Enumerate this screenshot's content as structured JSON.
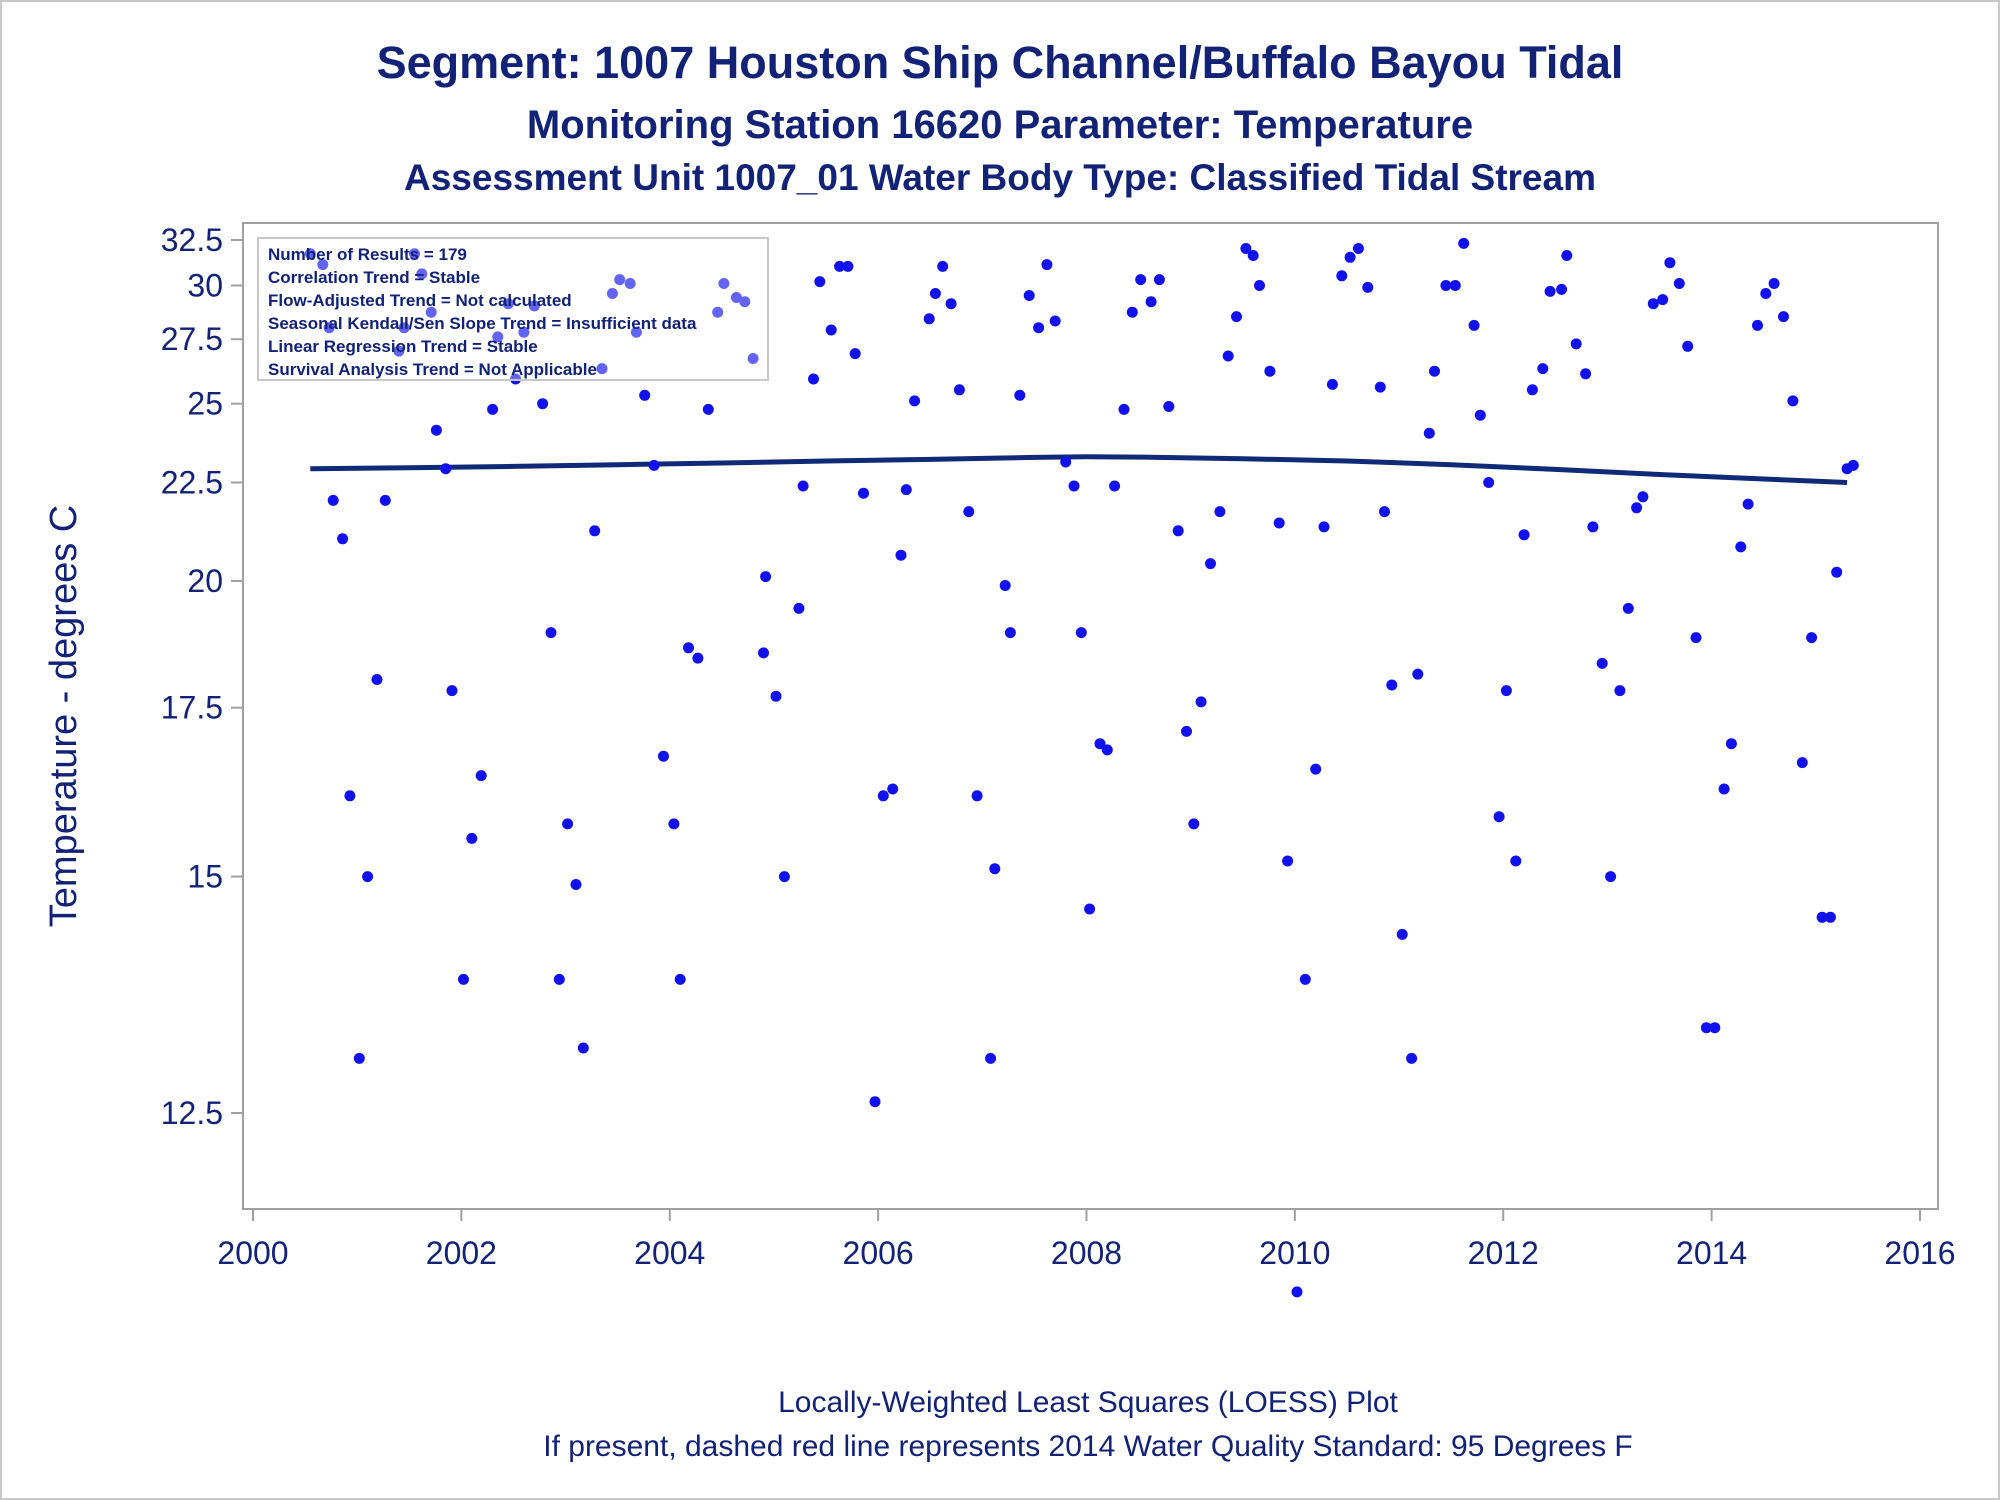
{
  "titles": {
    "line1": "Segment: 1007  Houston Ship Channel/Buffalo Bayou Tidal",
    "line2": "Monitoring Station 16620 Parameter: Temperature",
    "line3": "Assessment Unit 1007_01   Water Body Type: Classified Tidal Stream"
  },
  "stats_box": [
    "Number of Results = 179",
    "Correlation Trend = Stable",
    "Flow-Adjusted Trend = Not calculated",
    "Seasonal Kendall/Sen Slope Trend = Insufficient data",
    "Linear Regression Trend = Stable",
    "Survival Analysis Trend = Not Applicable"
  ],
  "footnotes": {
    "line1": "Locally-Weighted Least Squares (LOESS) Plot",
    "line2": "If present, dashed red line represents 2014 Water Quality Standard: 95   Degrees F"
  },
  "colors": {
    "text": "#112277",
    "points": "#1111ee",
    "loess": "#102a78",
    "frame": "#a0a0a0"
  },
  "chart_data": {
    "type": "scatter",
    "title": "Segment: 1007  Houston Ship Channel/Buffalo Bayou Tidal",
    "ylabel": "Temperature - degrees C",
    "xlabel": "",
    "xlim": [
      2000,
      2016
    ],
    "ylim": [
      10.8,
      32.7
    ],
    "x_ticks": [
      "2000",
      "2002",
      "2004",
      "2006",
      "2008",
      "2010",
      "2012",
      "2014",
      "2016"
    ],
    "y_ticks": [
      "32.5",
      "30",
      "27.5",
      "25",
      "22.5",
      "20",
      "17.5",
      "15",
      "12.5"
    ],
    "grid": false,
    "y_scale": "reciprocal",
    "series": [
      {
        "type": "scatter",
        "points": [
          [
            2000.55,
            31.7
          ],
          [
            2000.67,
            31.1
          ],
          [
            2000.73,
            28.0
          ],
          [
            2000.77,
            22.0
          ],
          [
            2000.86,
            21.0
          ],
          [
            2000.93,
            16.1
          ],
          [
            2001.02,
            13.0
          ],
          [
            2001.1,
            15.0
          ],
          [
            2001.19,
            18.0
          ],
          [
            2001.27,
            22.0
          ],
          [
            2001.4,
            27.0
          ],
          [
            2001.45,
            28.0
          ],
          [
            2001.55,
            31.7
          ],
          [
            2001.62,
            30.6
          ],
          [
            2001.71,
            28.7
          ],
          [
            2001.76,
            24.1
          ],
          [
            2001.85,
            22.9
          ],
          [
            2001.91,
            17.8
          ],
          [
            2002.02,
            13.8
          ],
          [
            2002.1,
            15.5
          ],
          [
            2002.19,
            16.4
          ],
          [
            2002.3,
            24.8
          ],
          [
            2002.35,
            27.6
          ],
          [
            2002.45,
            29.1
          ],
          [
            2002.52,
            25.9
          ],
          [
            2002.6,
            27.8
          ],
          [
            2002.7,
            29.0
          ],
          [
            2002.78,
            25.0
          ],
          [
            2002.86,
            18.9
          ],
          [
            2002.94,
            13.8
          ],
          [
            2003.02,
            15.7
          ],
          [
            2003.1,
            14.9
          ],
          [
            2003.17,
            13.1
          ],
          [
            2003.28,
            21.2
          ],
          [
            2003.35,
            26.3
          ],
          [
            2003.45,
            29.6
          ],
          [
            2003.52,
            30.3
          ],
          [
            2003.62,
            30.1
          ],
          [
            2003.68,
            27.8
          ],
          [
            2003.76,
            25.3
          ],
          [
            2003.85,
            23.0
          ],
          [
            2003.94,
            16.7
          ],
          [
            2004.04,
            15.7
          ],
          [
            2004.1,
            13.8
          ],
          [
            2004.18,
            18.6
          ],
          [
            2004.27,
            18.4
          ],
          [
            2004.37,
            24.8
          ],
          [
            2004.46,
            28.7
          ],
          [
            2004.52,
            30.1
          ],
          [
            2004.64,
            29.4
          ],
          [
            2004.72,
            29.2
          ],
          [
            2004.8,
            26.7
          ],
          [
            2004.9,
            18.5
          ],
          [
            2004.92,
            20.1
          ],
          [
            2005.02,
            17.7
          ],
          [
            2005.1,
            15.0
          ],
          [
            2005.24,
            19.4
          ],
          [
            2005.28,
            22.4
          ],
          [
            2005.38,
            25.9
          ],
          [
            2005.44,
            30.2
          ],
          [
            2005.55,
            27.9
          ],
          [
            2005.63,
            31.0
          ],
          [
            2005.71,
            31.0
          ],
          [
            2005.78,
            26.9
          ],
          [
            2005.86,
            22.2
          ],
          [
            2005.97,
            12.6
          ],
          [
            2006.05,
            16.1
          ],
          [
            2006.14,
            16.2
          ],
          [
            2006.22,
            20.6
          ],
          [
            2006.27,
            22.3
          ],
          [
            2006.35,
            25.1
          ],
          [
            2006.49,
            28.4
          ],
          [
            2006.55,
            29.6
          ],
          [
            2006.62,
            31.0
          ],
          [
            2006.7,
            29.1
          ],
          [
            2006.78,
            25.5
          ],
          [
            2006.87,
            21.7
          ],
          [
            2006.95,
            16.1
          ],
          [
            2007.08,
            13.0
          ],
          [
            2007.12,
            15.1
          ],
          [
            2007.22,
            19.9
          ],
          [
            2007.27,
            18.9
          ],
          [
            2007.36,
            25.3
          ],
          [
            2007.45,
            29.5
          ],
          [
            2007.54,
            28.0
          ],
          [
            2007.62,
            31.1
          ],
          [
            2007.7,
            28.3
          ],
          [
            2007.8,
            23.1
          ],
          [
            2007.88,
            22.4
          ],
          [
            2007.95,
            18.9
          ],
          [
            2008.03,
            14.6
          ],
          [
            2008.13,
            16.9
          ],
          [
            2008.2,
            16.8
          ],
          [
            2008.27,
            22.4
          ],
          [
            2008.36,
            24.8
          ],
          [
            2008.44,
            28.7
          ],
          [
            2008.52,
            30.3
          ],
          [
            2008.62,
            29.2
          ],
          [
            2008.7,
            30.3
          ],
          [
            2008.79,
            24.9
          ],
          [
            2008.88,
            21.2
          ],
          [
            2008.96,
            17.1
          ],
          [
            2009.03,
            15.7
          ],
          [
            2009.1,
            17.6
          ],
          [
            2009.19,
            20.4
          ],
          [
            2009.28,
            21.7
          ],
          [
            2009.36,
            26.8
          ],
          [
            2009.44,
            28.5
          ],
          [
            2009.53,
            32.0
          ],
          [
            2009.6,
            31.6
          ],
          [
            2009.66,
            30.0
          ],
          [
            2009.76,
            26.2
          ],
          [
            2009.85,
            21.4
          ],
          [
            2009.93,
            15.2
          ],
          [
            2010.02,
            11.1
          ],
          [
            2010.1,
            13.8
          ],
          [
            2010.2,
            16.5
          ],
          [
            2010.28,
            21.3
          ],
          [
            2010.36,
            25.7
          ],
          [
            2010.45,
            30.5
          ],
          [
            2010.53,
            31.5
          ],
          [
            2010.61,
            32.0
          ],
          [
            2010.7,
            29.9
          ],
          [
            2010.82,
            25.6
          ],
          [
            2010.86,
            21.7
          ],
          [
            2010.93,
            17.9
          ],
          [
            2011.03,
            14.3
          ],
          [
            2011.12,
            13.0
          ],
          [
            2011.18,
            18.1
          ],
          [
            2011.29,
            24.0
          ],
          [
            2011.34,
            26.2
          ],
          [
            2011.45,
            30.0
          ],
          [
            2011.54,
            30.0
          ],
          [
            2011.62,
            32.3
          ],
          [
            2011.72,
            28.1
          ],
          [
            2011.78,
            24.6
          ],
          [
            2011.86,
            22.5
          ],
          [
            2011.96,
            15.8
          ],
          [
            2012.03,
            17.8
          ],
          [
            2012.12,
            15.2
          ],
          [
            2012.2,
            21.1
          ],
          [
            2012.28,
            25.5
          ],
          [
            2012.38,
            26.3
          ],
          [
            2012.45,
            29.7
          ],
          [
            2012.56,
            29.8
          ],
          [
            2012.61,
            31.6
          ],
          [
            2012.7,
            27.3
          ],
          [
            2012.79,
            26.1
          ],
          [
            2012.86,
            21.3
          ],
          [
            2012.95,
            18.3
          ],
          [
            2013.03,
            15.0
          ],
          [
            2013.12,
            17.8
          ],
          [
            2013.2,
            19.4
          ],
          [
            2013.28,
            21.8
          ],
          [
            2013.34,
            22.1
          ],
          [
            2013.44,
            29.1
          ],
          [
            2013.53,
            29.3
          ],
          [
            2013.6,
            31.2
          ],
          [
            2013.69,
            30.1
          ],
          [
            2013.77,
            27.2
          ],
          [
            2013.85,
            18.8
          ],
          [
            2013.95,
            13.3
          ],
          [
            2014.03,
            13.3
          ],
          [
            2014.12,
            16.2
          ],
          [
            2014.19,
            16.9
          ],
          [
            2014.28,
            20.8
          ],
          [
            2014.35,
            21.9
          ],
          [
            2014.44,
            28.1
          ],
          [
            2014.52,
            29.6
          ],
          [
            2014.6,
            30.1
          ],
          [
            2014.69,
            28.5
          ],
          [
            2014.78,
            25.1
          ],
          [
            2014.87,
            16.6
          ],
          [
            2014.96,
            18.8
          ],
          [
            2015.06,
            14.5
          ],
          [
            2015.14,
            14.5
          ],
          [
            2015.2,
            20.2
          ],
          [
            2015.3,
            22.9
          ],
          [
            2015.36,
            23.0
          ]
        ]
      },
      {
        "type": "line",
        "points": [
          [
            2000.55,
            22.9
          ],
          [
            2001.5,
            22.93
          ],
          [
            2002.5,
            22.97
          ],
          [
            2003.5,
            23.02
          ],
          [
            2004.5,
            23.07
          ],
          [
            2005.5,
            23.13
          ],
          [
            2006.5,
            23.18
          ],
          [
            2007.5,
            23.24
          ],
          [
            2008.0,
            23.26
          ],
          [
            2008.5,
            23.25
          ],
          [
            2009.5,
            23.2
          ],
          [
            2010.5,
            23.13
          ],
          [
            2011.5,
            23.02
          ],
          [
            2012.5,
            22.88
          ],
          [
            2013.5,
            22.73
          ],
          [
            2014.5,
            22.6
          ],
          [
            2015.3,
            22.5
          ]
        ]
      }
    ]
  }
}
